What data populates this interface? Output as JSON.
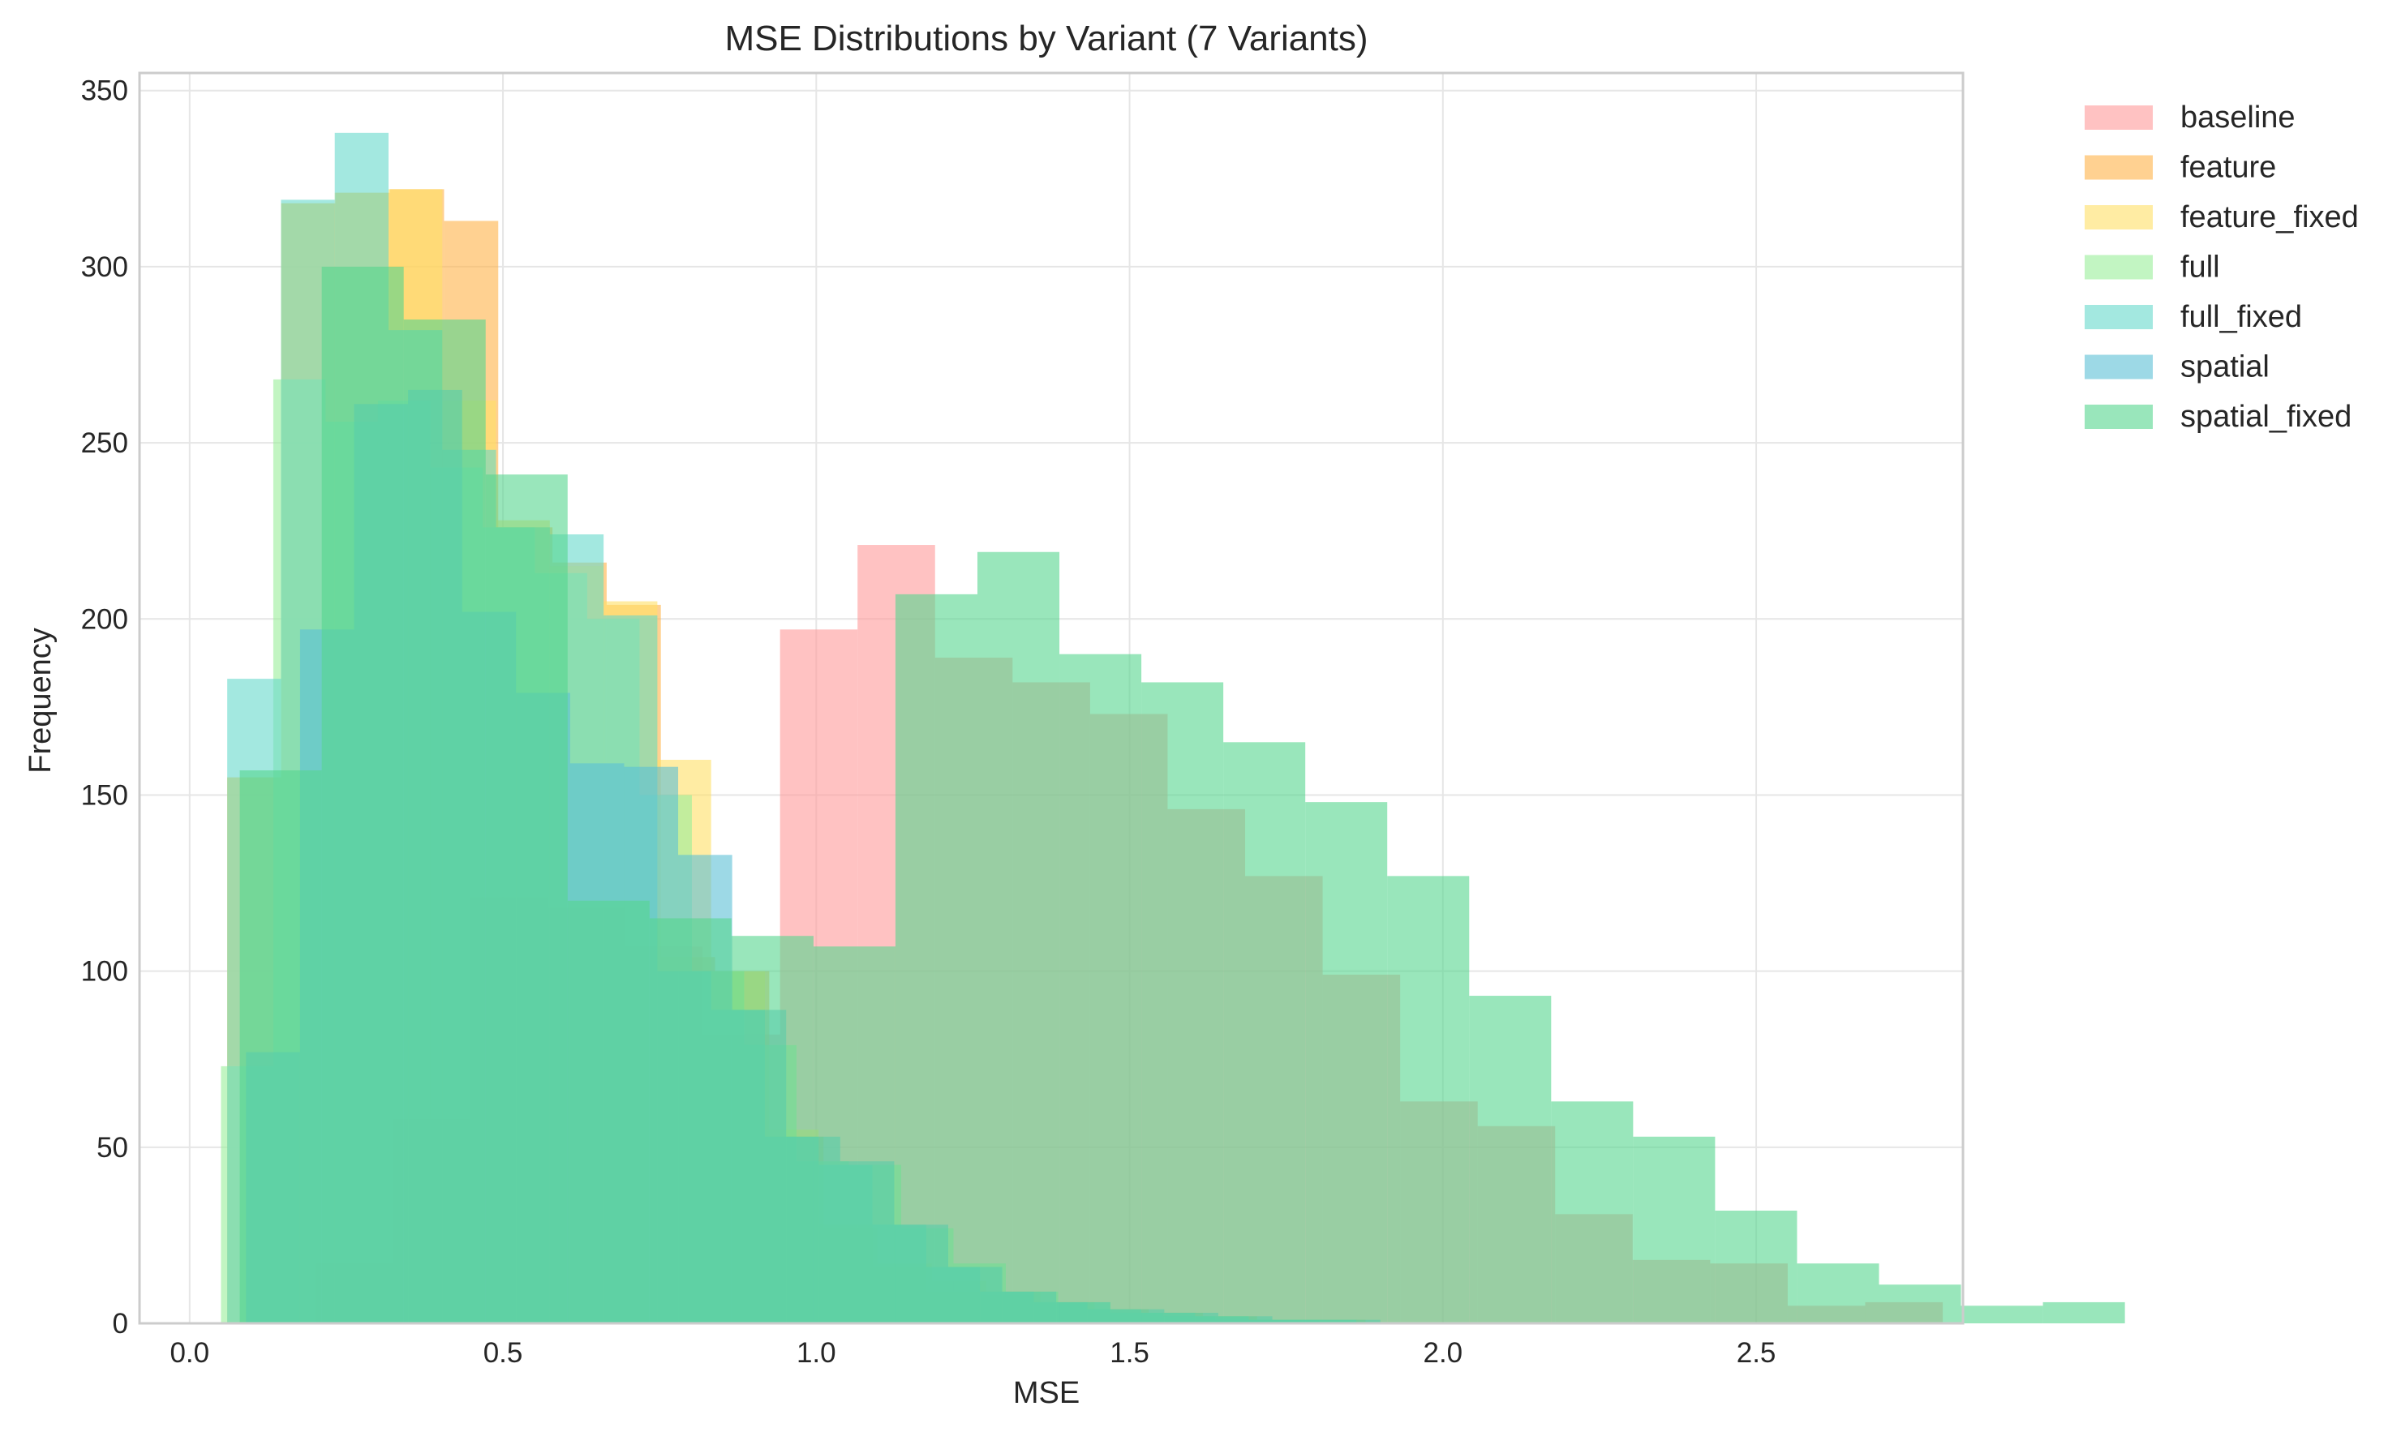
{
  "chart_data": {
    "type": "histogram",
    "title": "MSE Distributions by Variant (7 Variants)",
    "xlabel": "MSE",
    "ylabel": "Frequency",
    "xlim": [
      -0.08,
      2.83
    ],
    "ylim": [
      0,
      355
    ],
    "xticks": [
      0.0,
      0.5,
      1.0,
      1.5,
      2.0,
      2.5
    ],
    "xtick_labels": [
      "0.0",
      "0.5",
      "1.0",
      "1.5",
      "2.0",
      "2.5"
    ],
    "yticks": [
      0,
      50,
      100,
      150,
      200,
      250,
      300,
      350
    ],
    "ytick_labels": [
      "0",
      "50",
      "100",
      "150",
      "200",
      "250",
      "300",
      "350"
    ],
    "grid": true,
    "legend_position": "outside-right-top",
    "series": [
      {
        "name": "baseline",
        "color": "#ff9999",
        "start": 0.2,
        "bin_width": 0.1237,
        "counts": [
          17,
          58,
          121,
          118,
          107,
          82,
          197,
          221,
          189,
          182,
          173,
          146,
          127,
          99,
          63,
          56,
          31,
          18,
          17,
          5,
          6
        ]
      },
      {
        "name": "feature",
        "color": "#ffb347",
        "start": 0.06,
        "bin_width": 0.0865,
        "counts": [
          155,
          318,
          321,
          322,
          313,
          226,
          216,
          204,
          104,
          100,
          53,
          27,
          17,
          12,
          9,
          6,
          4,
          3,
          2,
          1,
          1
        ]
      },
      {
        "name": "feature_fixed",
        "color": "#ffe066",
        "start": 0.06,
        "bin_width": 0.0858,
        "counts": [
          155,
          318,
          321,
          322,
          262,
          228,
          215,
          205,
          160,
          100,
          55,
          28,
          16,
          9,
          8,
          6,
          4,
          3,
          2,
          1,
          1
        ]
      },
      {
        "name": "full",
        "color": "#99ee99",
        "start": 0.05,
        "bin_width": 0.0835,
        "counts": [
          73,
          268,
          256,
          262,
          243,
          226,
          213,
          200,
          150,
          100,
          79,
          46,
          45,
          27,
          17,
          9,
          6,
          3,
          2,
          1,
          1
        ]
      },
      {
        "name": "full_fixed",
        "color": "#66d9cc",
        "start": 0.06,
        "bin_width": 0.0858,
        "counts": [
          183,
          319,
          338,
          282,
          248,
          226,
          224,
          201,
          100,
          89,
          53,
          45,
          28,
          16,
          9,
          6,
          4,
          3,
          2,
          1,
          1
        ]
      },
      {
        "name": "spatial",
        "color": "#5bbfd6",
        "start": 0.09,
        "bin_width": 0.0862,
        "counts": [
          77,
          197,
          261,
          265,
          202,
          179,
          159,
          158,
          133,
          89,
          53,
          46,
          28,
          16,
          9,
          6,
          4,
          3,
          2,
          1,
          1
        ]
      },
      {
        "name": "spatial_fixed",
        "color": "#55d68e",
        "start": 0.08,
        "bin_width": 0.1308,
        "counts": [
          157,
          300,
          285,
          241,
          120,
          115,
          110,
          107,
          207,
          219,
          190,
          182,
          165,
          148,
          127,
          93,
          63,
          53,
          32,
          17,
          11,
          5,
          6
        ]
      }
    ]
  }
}
